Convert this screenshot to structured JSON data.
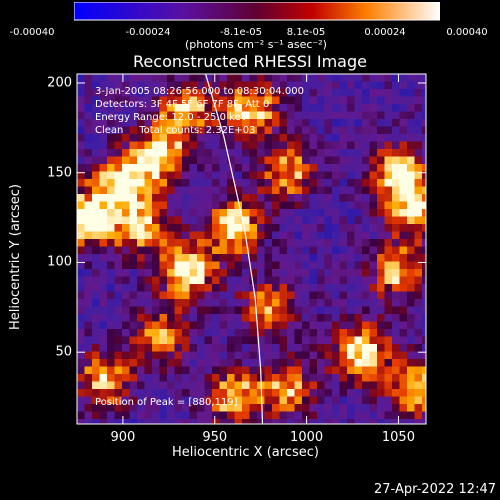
{
  "colorbar": {
    "ticks": [
      "-0.00040",
      "-0.00024",
      "-8.1e-05",
      "8.1e-05",
      "0.00024",
      "0.00040"
    ],
    "units": "(photons cm⁻² s⁻¹ asec⁻²)"
  },
  "chart_data": {
    "type": "heatmap",
    "title": "Reconstructed RHESSI Image",
    "xlabel": "Heliocentric X (arcsec)",
    "ylabel": "Heliocentric Y (arcsec)",
    "xlim": [
      875,
      1065
    ],
    "ylim": [
      10,
      205
    ],
    "x_ticks": [
      900,
      950,
      1000,
      1050
    ],
    "y_ticks": [
      50,
      100,
      150,
      200
    ],
    "color_range": [
      -0.0004,
      0.0004
    ],
    "annotations": [
      "3-Jan-2005 08:26:56.000 to 08:30:04.000",
      "Detectors: 3F 4F 5F 6F 7F 8F, Att 0",
      "Energy Range: 12.0 - 25.0 keV",
      "Clean     Total counts: 2.32E+03"
    ],
    "peak_label": "Position of Peak = [880,119]",
    "peak_position": [
      880,
      119
    ],
    "bright_regions": [
      {
        "x": 920,
        "y": 160,
        "level": 0.8
      },
      {
        "x": 900,
        "y": 145,
        "level": 0.85
      },
      {
        "x": 880,
        "y": 125,
        "level": 1.0
      },
      {
        "x": 910,
        "y": 120,
        "level": 0.7
      },
      {
        "x": 935,
        "y": 95,
        "level": 0.95
      },
      {
        "x": 960,
        "y": 120,
        "level": 0.9
      },
      {
        "x": 970,
        "y": 185,
        "level": 0.75
      },
      {
        "x": 935,
        "y": 185,
        "level": 0.6
      },
      {
        "x": 990,
        "y": 150,
        "level": 0.55
      },
      {
        "x": 1050,
        "y": 150,
        "level": 0.8
      },
      {
        "x": 1060,
        "y": 130,
        "level": 0.75
      },
      {
        "x": 1050,
        "y": 95,
        "level": 0.6
      },
      {
        "x": 1030,
        "y": 50,
        "level": 0.85
      },
      {
        "x": 1060,
        "y": 30,
        "level": 0.8
      },
      {
        "x": 890,
        "y": 35,
        "level": 0.65
      },
      {
        "x": 960,
        "y": 25,
        "level": 0.7
      },
      {
        "x": 990,
        "y": 30,
        "level": 0.55
      },
      {
        "x": 920,
        "y": 60,
        "level": 0.5
      },
      {
        "x": 980,
        "y": 75,
        "level": 0.5
      }
    ],
    "limb_curve": [
      [
        945,
        205
      ],
      [
        955,
        170
      ],
      [
        966,
        120
      ],
      [
        972,
        80
      ],
      [
        975,
        40
      ],
      [
        976,
        10
      ]
    ]
  },
  "timestamp": "27-Apr-2022 12:47"
}
